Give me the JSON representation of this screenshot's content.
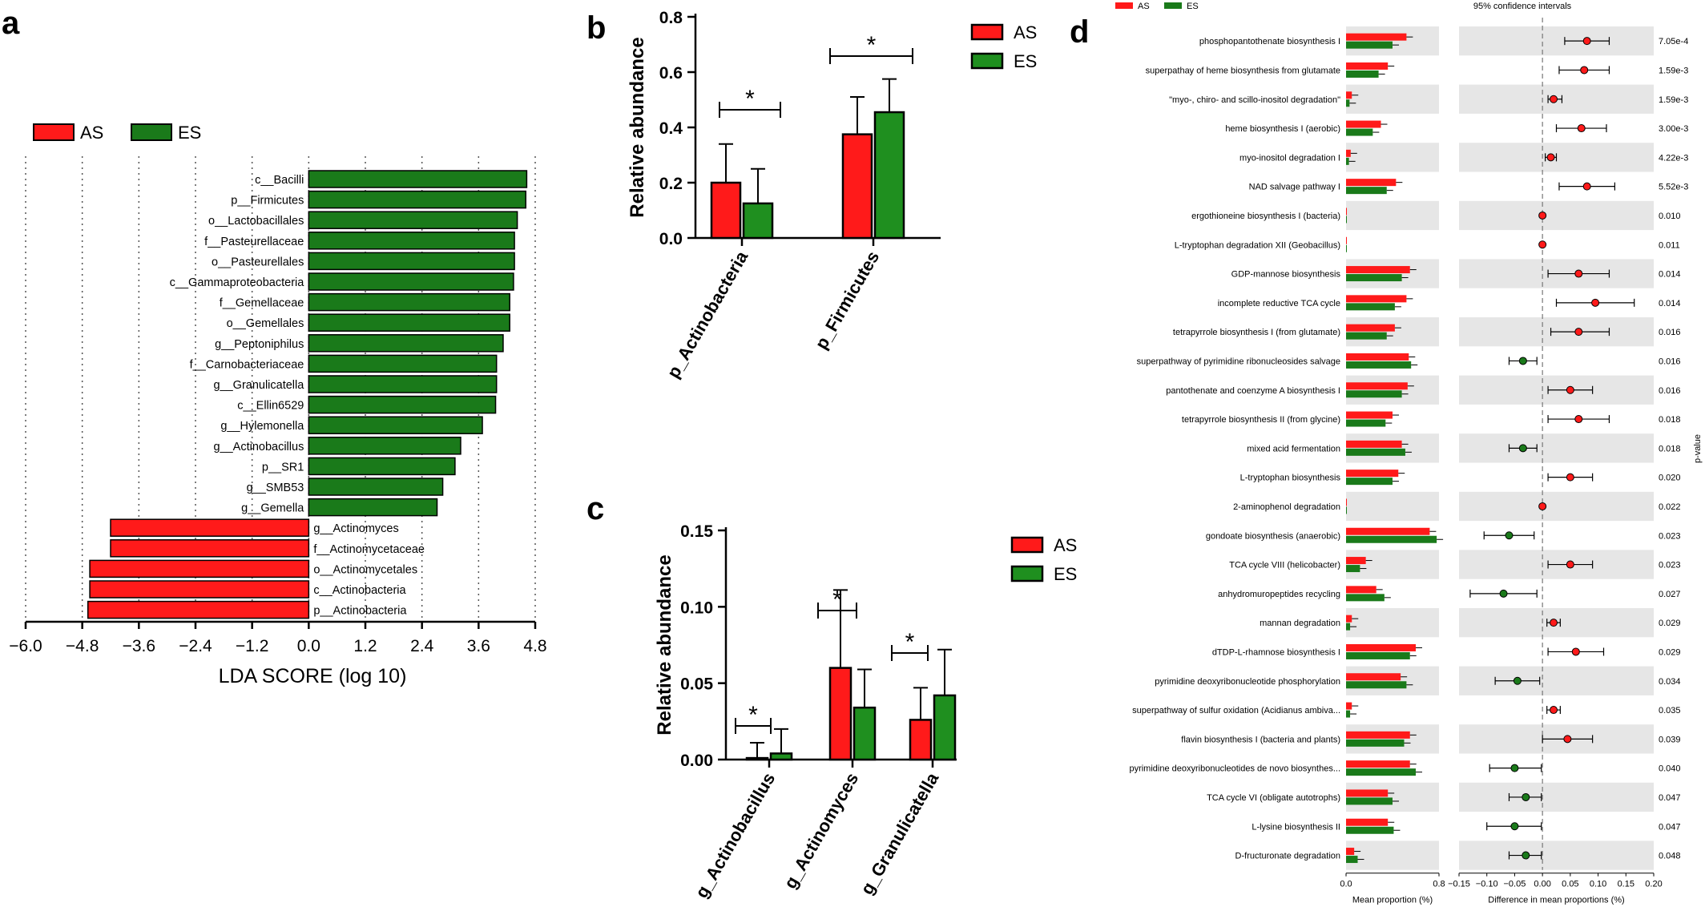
{
  "colors": {
    "AS": "#ff1a1a",
    "ES": "#1a7a1a",
    "ES_light": "#1f8f1f",
    "band": "#e6e6e6"
  },
  "panels": {
    "a": "a",
    "b": "b",
    "c": "c",
    "d": "d"
  },
  "chart_data": [
    {
      "id": "a",
      "type": "bar",
      "orientation": "horizontal",
      "legend": [
        "AS",
        "ES"
      ],
      "legend_position": "top-left",
      "xlabel": "LDA SCORE (log 10)",
      "xlim": [
        -6.0,
        4.8
      ],
      "xticks": [
        "−6.0",
        "−4.8",
        "−3.6",
        "−2.4",
        "−1.2",
        "0.0",
        "1.2",
        "2.4",
        "3.6",
        "4.8"
      ],
      "xtick_values": [
        -6.0,
        -4.8,
        -3.6,
        -2.4,
        -1.2,
        0.0,
        1.2,
        2.4,
        3.6,
        4.8
      ],
      "grid": "dotted vertical",
      "bars": [
        {
          "label": "c__Bacilli",
          "value": 4.62,
          "group": "ES"
        },
        {
          "label": "p__Firmicutes",
          "value": 4.6,
          "group": "ES"
        },
        {
          "label": "o__Lactobacillales",
          "value": 4.42,
          "group": "ES"
        },
        {
          "label": "f__Pasteurellaceae",
          "value": 4.36,
          "group": "ES"
        },
        {
          "label": "o__Pasteurellales",
          "value": 4.36,
          "group": "ES"
        },
        {
          "label": "c__Gammaproteobacteria",
          "value": 4.34,
          "group": "ES"
        },
        {
          "label": "f__Gemellaceae",
          "value": 4.26,
          "group": "ES"
        },
        {
          "label": "o__Gemellales",
          "value": 4.26,
          "group": "ES"
        },
        {
          "label": "g__Peptoniphilus",
          "value": 4.12,
          "group": "ES"
        },
        {
          "label": "f__Carnobacteriaceae",
          "value": 3.98,
          "group": "ES"
        },
        {
          "label": "g__Granulicatella",
          "value": 3.98,
          "group": "ES"
        },
        {
          "label": "c__Ellin6529",
          "value": 3.96,
          "group": "ES"
        },
        {
          "label": "g__Hylemonella",
          "value": 3.68,
          "group": "ES"
        },
        {
          "label": "g__Actinobacillus",
          "value": 3.22,
          "group": "ES"
        },
        {
          "label": "p__SR1",
          "value": 3.1,
          "group": "ES"
        },
        {
          "label": "g__SMB53",
          "value": 2.84,
          "group": "ES"
        },
        {
          "label": "g__Gemella",
          "value": 2.72,
          "group": "ES"
        },
        {
          "label": "g__Actinomyces",
          "value": -4.2,
          "group": "AS"
        },
        {
          "label": "f__Actinomycetaceae",
          "value": -4.2,
          "group": "AS"
        },
        {
          "label": "o__Actinomycetales",
          "value": -4.64,
          "group": "AS"
        },
        {
          "label": "c__Actinobacteria",
          "value": -4.64,
          "group": "AS"
        },
        {
          "label": "p__Actinobacteria",
          "value": -4.68,
          "group": "AS"
        }
      ]
    },
    {
      "id": "b",
      "type": "bar",
      "ylabel": "Relative abundance",
      "ylim": [
        0.0,
        0.8
      ],
      "yticks": [
        "0.0",
        "0.2",
        "0.4",
        "0.6",
        "0.8"
      ],
      "ytick_values": [
        0.0,
        0.2,
        0.4,
        0.6,
        0.8
      ],
      "categories": [
        "p_Actinobacteria",
        "p_Firmicutes"
      ],
      "series": [
        {
          "name": "AS",
          "values": [
            0.2,
            0.375
          ],
          "errors": [
            0.14,
            0.135
          ]
        },
        {
          "name": "ES",
          "values": [
            0.125,
            0.455
          ],
          "errors": [
            0.125,
            0.12
          ]
        }
      ],
      "significance": [
        "*",
        "*"
      ],
      "legend_position": "top-right"
    },
    {
      "id": "c",
      "type": "bar",
      "ylabel": "Relative abundance",
      "ylim": [
        0.0,
        0.15
      ],
      "yticks": [
        "0.00",
        "0.05",
        "0.10",
        "0.15"
      ],
      "ytick_values": [
        0.0,
        0.05,
        0.1,
        0.15
      ],
      "categories": [
        "g_Actinobacillus",
        "g_Actinomyces",
        "g_Granulicatella"
      ],
      "series": [
        {
          "name": "AS",
          "values": [
            0.001,
            0.06,
            0.026
          ],
          "errors": [
            0.01,
            0.051,
            0.021
          ]
        },
        {
          "name": "ES",
          "values": [
            0.004,
            0.034,
            0.042
          ],
          "errors": [
            0.016,
            0.025,
            0.03
          ]
        }
      ],
      "significance": [
        "*",
        "*",
        "*"
      ],
      "legend_position": "top-right"
    },
    {
      "id": "d",
      "type": "scatter",
      "legend": [
        "AS",
        "ES"
      ],
      "ci_title": "95% confidence intervals",
      "left_xlabel": "Mean proportion (%)",
      "left_xticks": [
        "0.0",
        "0.8"
      ],
      "left_xlim": [
        0.0,
        0.8
      ],
      "right_xlabel": "Difference in mean proportions (%)",
      "right_xticks": [
        "−0.15",
        "−0.10",
        "−0.05",
        "0.00",
        "0.05",
        "0.10",
        "0.15",
        "0.20"
      ],
      "right_xtick_values": [
        -0.15,
        -0.1,
        -0.05,
        0.0,
        0.05,
        0.1,
        0.15,
        0.2
      ],
      "right_xlim": [
        -0.15,
        0.2
      ],
      "pvalue_label": "p-value",
      "rows": [
        {
          "pathway": "phosphopantothenate biosynthesis I",
          "as": 0.52,
          "es": 0.4,
          "diff": 0.08,
          "lo": 0.04,
          "hi": 0.12,
          "p": "7.05e-4"
        },
        {
          "pathway": "superpathay of heme biosynthesis from glutamate",
          "as": 0.36,
          "es": 0.28,
          "diff": 0.075,
          "lo": 0.03,
          "hi": 0.12,
          "p": "1.59e-3"
        },
        {
          "pathway": "\"myo-, chiro- and scillo-inositol degradation\"",
          "as": 0.05,
          "es": 0.03,
          "diff": 0.02,
          "lo": 0.01,
          "hi": 0.035,
          "p": "1.59e-3"
        },
        {
          "pathway": "heme biosynthesis I (aerobic)",
          "as": 0.3,
          "es": 0.23,
          "diff": 0.07,
          "lo": 0.025,
          "hi": 0.115,
          "p": "3.00e-3"
        },
        {
          "pathway": "myo-inositol degradation I",
          "as": 0.04,
          "es": 0.025,
          "diff": 0.015,
          "lo": 0.005,
          "hi": 0.025,
          "p": "4.22e-3"
        },
        {
          "pathway": "NAD salvage pathway I",
          "as": 0.43,
          "es": 0.35,
          "diff": 0.08,
          "lo": 0.03,
          "hi": 0.13,
          "p": "5.52e-3"
        },
        {
          "pathway": "ergothioneine biosynthesis I (bacteria)",
          "as": 0.004,
          "es": 0.0,
          "diff": 0.0,
          "lo": 0.0,
          "hi": 0.0,
          "p": "0.010"
        },
        {
          "pathway": "L-tryptophan degradation XII (Geobacillus)",
          "as": 0.004,
          "es": 0.0,
          "diff": 0.0,
          "lo": 0.0,
          "hi": 0.0,
          "p": "0.011"
        },
        {
          "pathway": "GDP-mannose biosynthesis",
          "as": 0.55,
          "es": 0.48,
          "diff": 0.065,
          "lo": 0.01,
          "hi": 0.12,
          "p": "0.014"
        },
        {
          "pathway": "incomplete reductive TCA cycle",
          "as": 0.52,
          "es": 0.42,
          "diff": 0.095,
          "lo": 0.025,
          "hi": 0.165,
          "p": "0.014"
        },
        {
          "pathway": "tetrapyrrole biosynthesis I (from glutamate)",
          "as": 0.42,
          "es": 0.35,
          "diff": 0.065,
          "lo": 0.015,
          "hi": 0.12,
          "p": "0.016"
        },
        {
          "pathway": "superpathway of pyrimidine ribonucleosides salvage",
          "as": 0.54,
          "es": 0.56,
          "diff": -0.035,
          "lo": -0.06,
          "hi": -0.01,
          "p": "0.016"
        },
        {
          "pathway": "pantothenate and coenzyme A biosynthesis I",
          "as": 0.53,
          "es": 0.48,
          "diff": 0.05,
          "lo": 0.01,
          "hi": 0.09,
          "p": "0.016"
        },
        {
          "pathway": "tetrapyrrole biosynthesis II (from glycine)",
          "as": 0.4,
          "es": 0.34,
          "diff": 0.065,
          "lo": 0.01,
          "hi": 0.12,
          "p": "0.018"
        },
        {
          "pathway": "mixed acid fermentation",
          "as": 0.48,
          "es": 0.51,
          "diff": -0.035,
          "lo": -0.06,
          "hi": -0.01,
          "p": "0.018"
        },
        {
          "pathway": "L-tryptophan biosynthesis",
          "as": 0.45,
          "es": 0.4,
          "diff": 0.05,
          "lo": 0.01,
          "hi": 0.09,
          "p": "0.020"
        },
        {
          "pathway": "2-aminophenol degradation",
          "as": 0.004,
          "es": 0.0,
          "diff": 0.0,
          "lo": 0.0,
          "hi": 0.0,
          "p": "0.022"
        },
        {
          "pathway": "gondoate biosynthesis (anaerobic)",
          "as": 0.72,
          "es": 0.78,
          "diff": -0.06,
          "lo": -0.105,
          "hi": -0.015,
          "p": "0.023"
        },
        {
          "pathway": "TCA cycle VIII (helicobacter)",
          "as": 0.17,
          "es": 0.12,
          "diff": 0.05,
          "lo": 0.01,
          "hi": 0.09,
          "p": "0.023"
        },
        {
          "pathway": "anhydromuropeptides recycling",
          "as": 0.26,
          "es": 0.33,
          "diff": -0.07,
          "lo": -0.13,
          "hi": -0.01,
          "p": "0.027"
        },
        {
          "pathway": "mannan degradation",
          "as": 0.05,
          "es": 0.035,
          "diff": 0.02,
          "lo": 0.008,
          "hi": 0.032,
          "p": "0.029"
        },
        {
          "pathway": "dTDP-L-rhamnose biosynthesis I",
          "as": 0.6,
          "es": 0.55,
          "diff": 0.06,
          "lo": 0.01,
          "hi": 0.11,
          "p": "0.029"
        },
        {
          "pathway": "pyrimidine deoxyribonucleotide phosphorylation",
          "as": 0.47,
          "es": 0.52,
          "diff": -0.045,
          "lo": -0.085,
          "hi": -0.005,
          "p": "0.034"
        },
        {
          "pathway": "superpathway of sulfur oxidation (Acidianus ambiva...",
          "as": 0.05,
          "es": 0.035,
          "diff": 0.02,
          "lo": 0.008,
          "hi": 0.032,
          "p": "0.035"
        },
        {
          "pathway": "flavin biosynthesis I (bacteria and plants)",
          "as": 0.55,
          "es": 0.5,
          "diff": 0.045,
          "lo": 0.0,
          "hi": 0.09,
          "p": "0.039"
        },
        {
          "pathway": "pyrimidine deoxyribonucleotides de novo biosynthes...",
          "as": 0.55,
          "es": 0.6,
          "diff": -0.05,
          "lo": -0.095,
          "hi": -0.002,
          "p": "0.040"
        },
        {
          "pathway": "TCA cycle VI (obligate autotrophs)",
          "as": 0.36,
          "es": 0.4,
          "diff": -0.03,
          "lo": -0.06,
          "hi": -0.002,
          "p": "0.047"
        },
        {
          "pathway": "L-lysine biosynthesis II",
          "as": 0.36,
          "es": 0.41,
          "diff": -0.05,
          "lo": -0.1,
          "hi": -0.002,
          "p": "0.047"
        },
        {
          "pathway": "D-fructuronate degradation",
          "as": 0.07,
          "es": 0.1,
          "diff": -0.03,
          "lo": -0.06,
          "hi": -0.002,
          "p": "0.048"
        }
      ]
    }
  ]
}
